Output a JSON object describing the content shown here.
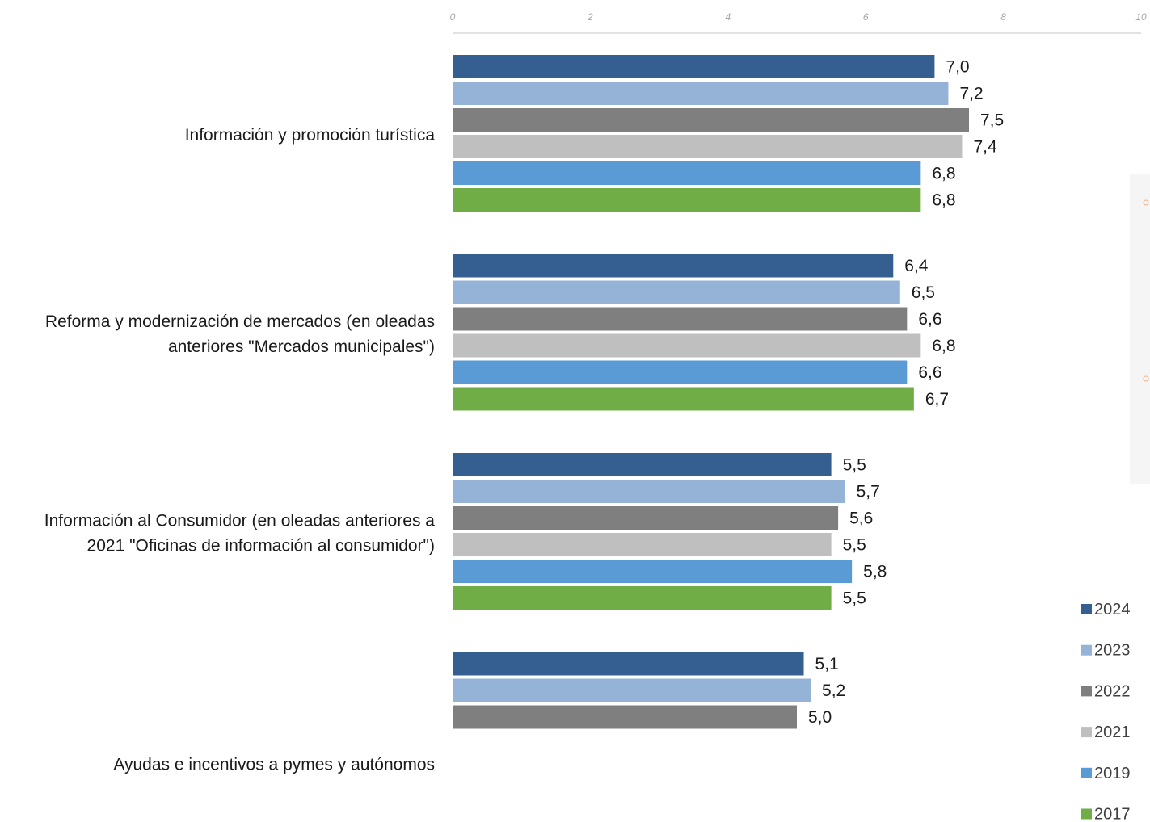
{
  "chart_data": {
    "type": "bar",
    "orientation": "horizontal",
    "xlim": [
      0,
      10
    ],
    "ticks": [
      "0",
      "2",
      "4",
      "6",
      "8",
      "10"
    ],
    "categories": [
      [
        "Información y promoción turística"
      ],
      [
        "Reforma y modernización de mercados (en oleadas",
        "anteriores \"Mercados municipales\")"
      ],
      [
        "Información al Consumidor (en oleadas anteriores a",
        "2021 \"Oficinas de información al consumidor\")"
      ],
      [
        "Ayudas e incentivos a pymes y autónomos"
      ]
    ],
    "series": [
      {
        "name": "2024",
        "color": "#355f91",
        "values": [
          7.0,
          6.4,
          5.5,
          5.1
        ],
        "labels": [
          "7,0",
          "6,4",
          "5,5",
          "5,1"
        ]
      },
      {
        "name": "2023",
        "color": "#95b3d7",
        "values": [
          7.2,
          6.5,
          5.7,
          5.2
        ],
        "labels": [
          "7,2",
          "6,5",
          "5,7",
          "5,2"
        ]
      },
      {
        "name": "2022",
        "color": "#7f7f7f",
        "values": [
          7.5,
          6.6,
          5.6,
          5.0
        ],
        "labels": [
          "7,5",
          "6,6",
          "5,6",
          "5,0"
        ]
      },
      {
        "name": "2021",
        "color": "#bfbfbf",
        "values": [
          7.4,
          6.8,
          5.5,
          null
        ],
        "labels": [
          "7,4",
          "6,8",
          "5,5",
          ""
        ]
      },
      {
        "name": "2019",
        "color": "#5b9bd5",
        "values": [
          6.8,
          6.6,
          5.8,
          null
        ],
        "labels": [
          "6,8",
          "6,6",
          "5,8",
          ""
        ]
      },
      {
        "name": "2017",
        "color": "#70ad47",
        "values": [
          6.8,
          6.7,
          5.5,
          null
        ],
        "labels": [
          "6,8",
          "6,7",
          "5,5",
          ""
        ]
      }
    ],
    "grid": false,
    "legend_position": "bottom-right",
    "title": "",
    "xlabel": "",
    "ylabel": ""
  }
}
